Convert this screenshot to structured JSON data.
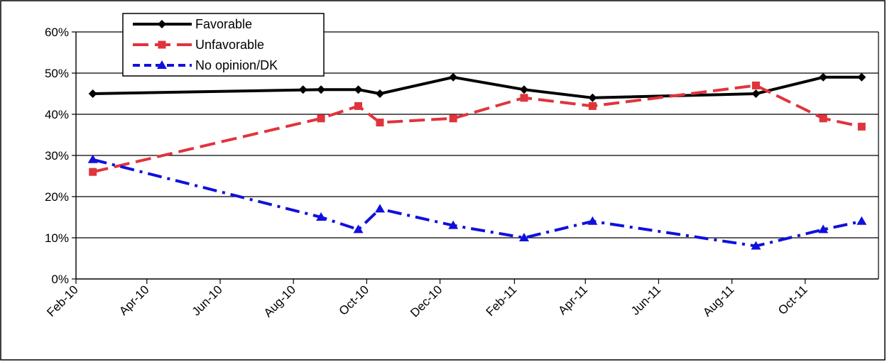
{
  "chart_data": {
    "type": "line",
    "title": "",
    "xlabel": "",
    "ylabel": "",
    "ylim": [
      0,
      60
    ],
    "y_ticks": [
      0,
      10,
      20,
      30,
      40,
      50,
      60
    ],
    "y_tick_labels": [
      "0%",
      "10%",
      "20%",
      "30%",
      "40%",
      "50%",
      "60%"
    ],
    "x_range": [
      "2010-02-01",
      "2011-12-01"
    ],
    "x_ticks": [
      "2010-02-01",
      "2010-04-01",
      "2010-06-01",
      "2010-08-01",
      "2010-10-01",
      "2010-12-01",
      "2011-02-01",
      "2011-04-01",
      "2011-06-01",
      "2011-08-01",
      "2011-10-01"
    ],
    "x_tick_labels": [
      "Feb-10",
      "Apr-10",
      "Jun-10",
      "Aug-10",
      "Oct-10",
      "Dec-10",
      "Feb-11",
      "Apr-11",
      "Jun-11",
      "Aug-11",
      "Oct-11"
    ],
    "grid": "horizontal",
    "legend_position": "top-left",
    "x": [
      "2010-02-15",
      "2010-08-24",
      "2010-09-24",
      "2010-10-12",
      "2010-12-12",
      "2011-02-09",
      "2011-04-07",
      "2011-08-21",
      "2011-10-16",
      "2011-11-17"
    ],
    "series": [
      {
        "name": "Favorable",
        "color": "#000000",
        "marker": "diamond",
        "dash": "solid",
        "values": [
          45,
          46,
          46,
          45,
          49,
          46,
          44,
          45,
          49,
          49
        ],
        "extra_points": [
          {
            "x": "2010-08-09",
            "y": 46
          }
        ]
      },
      {
        "name": "Unfavorable",
        "color": "#e0343c",
        "marker": "square",
        "dash": "dashed",
        "values": [
          26,
          39,
          42,
          38,
          39,
          44,
          42,
          47,
          39,
          37
        ]
      },
      {
        "name": "No opinion/DK",
        "color": "#1010dd",
        "marker": "triangle",
        "dash": "dash-dot",
        "values": [
          29,
          15,
          12,
          17,
          13,
          10,
          14,
          8,
          12,
          14
        ]
      }
    ]
  }
}
